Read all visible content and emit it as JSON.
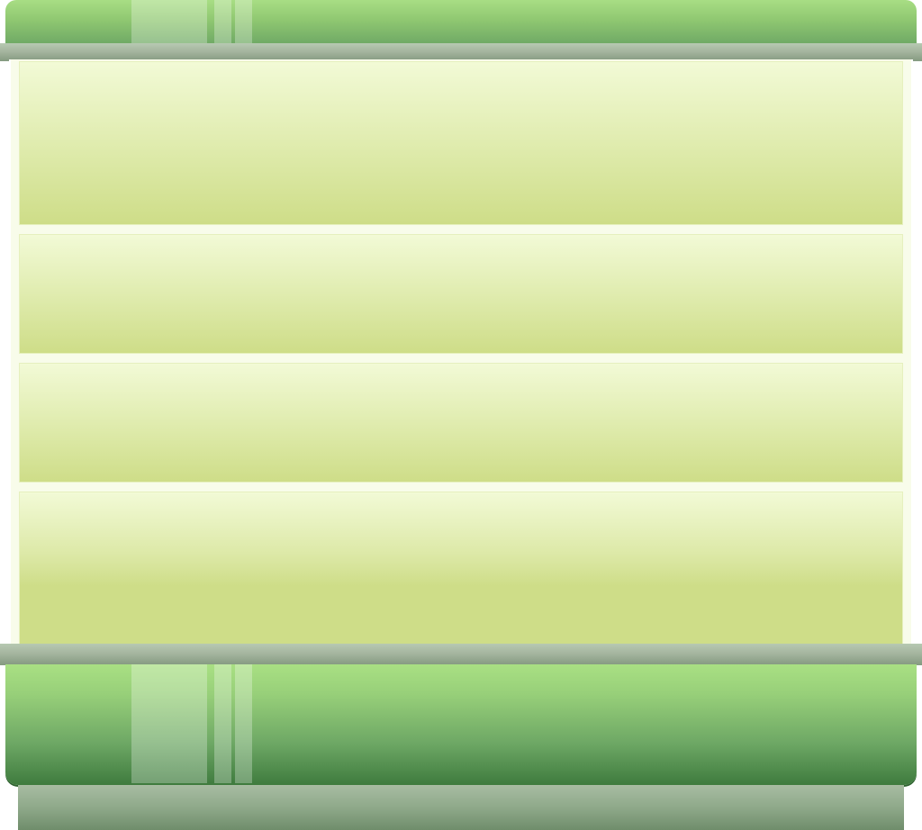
{
  "window": {
    "title": ""
  },
  "panels": [
    {
      "label": ""
    },
    {
      "label": ""
    },
    {
      "label": ""
    },
    {
      "label": ""
    }
  ],
  "colors": {
    "cap_green_light": "#a8de84",
    "cap_green_dark": "#3f7b3e",
    "bar_gray": "#a5b59f",
    "slat_top": "#f2fad6",
    "slat_bottom": "#cedd88",
    "frame_bg": "#f8fcea"
  }
}
